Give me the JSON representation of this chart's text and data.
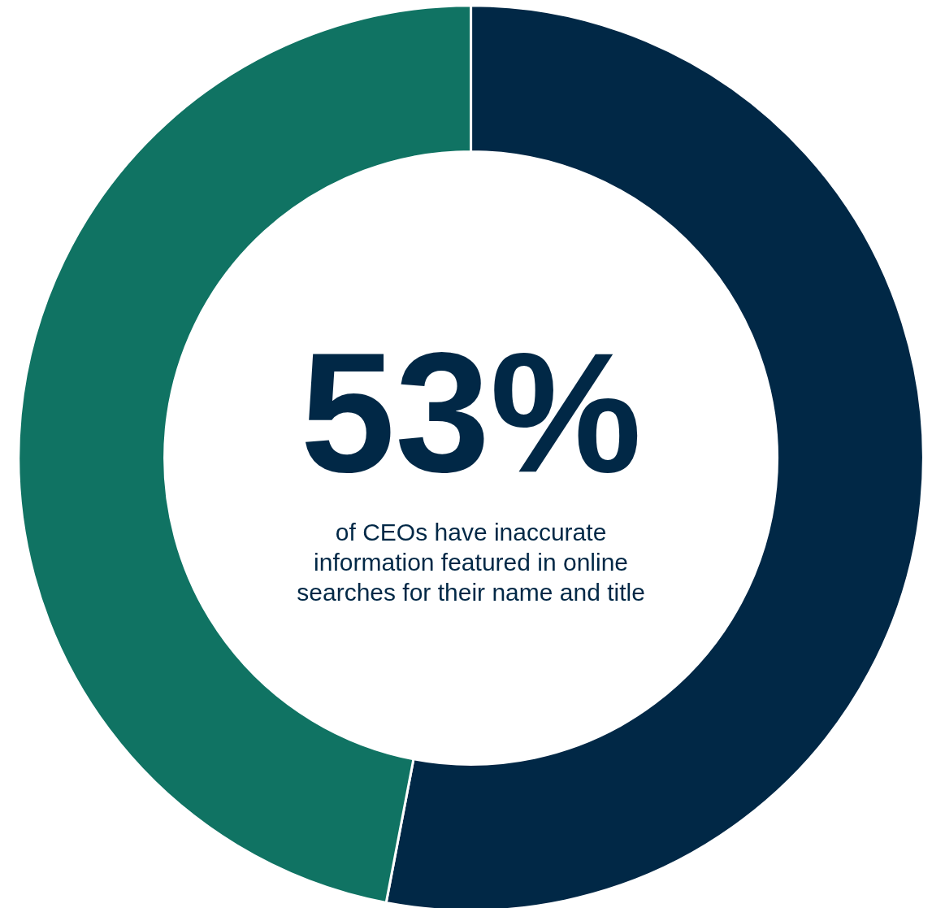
{
  "chart_data": {
    "type": "donut",
    "title": "53%",
    "subtitle": "of CEOs have inaccurate information featured in online searches for their name and title",
    "categories": [
      null,
      null
    ],
    "values": [
      53,
      47
    ],
    "colors": [
      "#012846",
      "#107363"
    ],
    "legend": false
  }
}
